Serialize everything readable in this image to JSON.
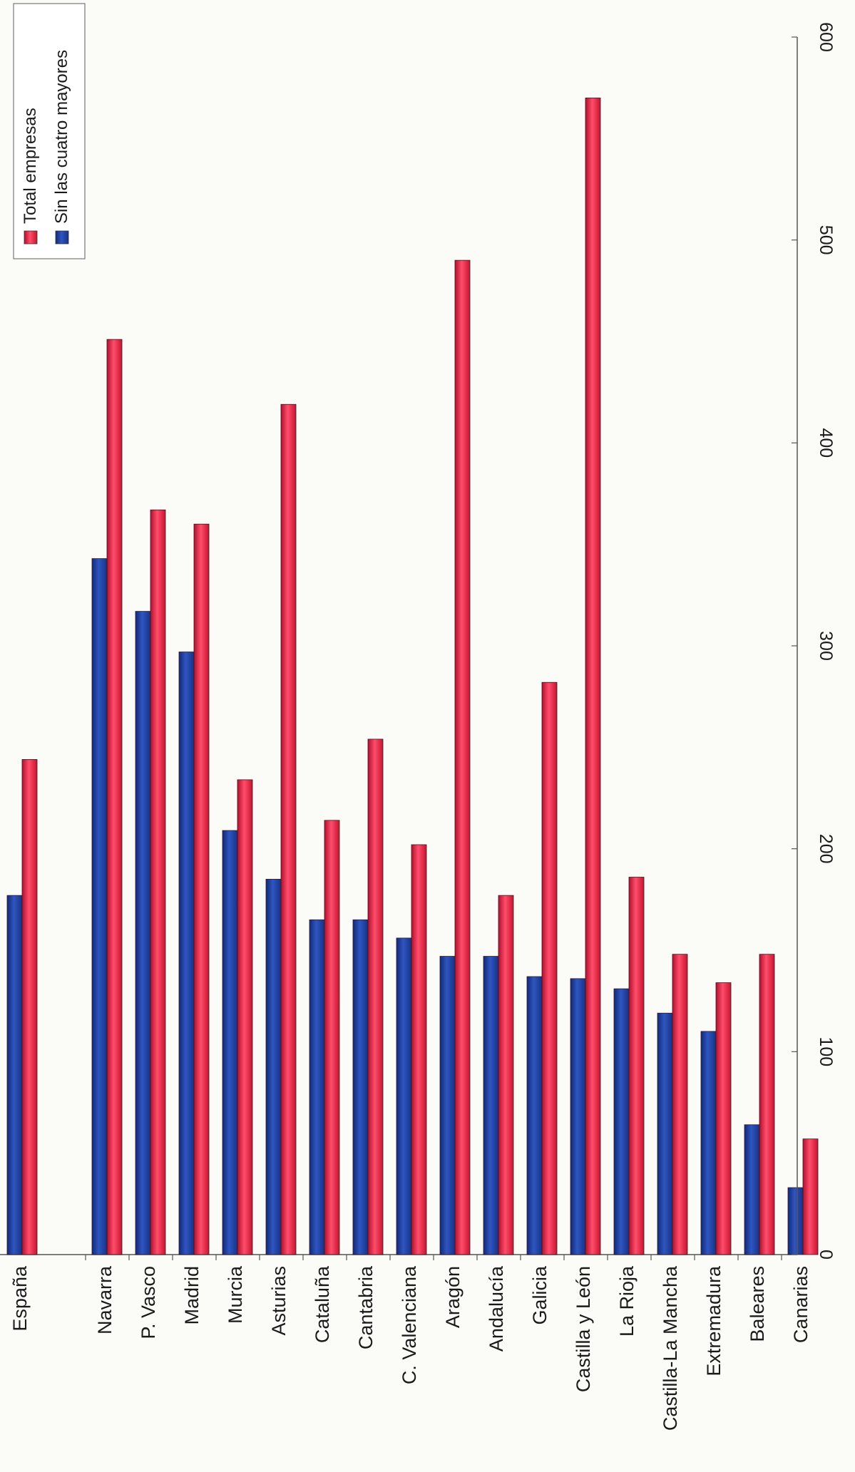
{
  "chart_data": {
    "type": "bar",
    "orientation": "rotated-90-clockwise",
    "categories": [
      "España",
      "Navarra",
      "P. Vasco",
      "Madrid",
      "Murcia",
      "Asturias",
      "Cataluña",
      "Cantabria",
      "C. Valenciana",
      "Aragón",
      "Andalucía",
      "Galicia",
      "Castilla y León",
      "La Rioja",
      "Castilla-La Mancha",
      "Extremadura",
      "Baleares",
      "Canarias"
    ],
    "series": [
      {
        "name": "Sin las cuatro mayores",
        "color": "#1f3f9c",
        "values": [
          177,
          343,
          317,
          297,
          209,
          185,
          165,
          165,
          156,
          147,
          147,
          137,
          136,
          131,
          119,
          110,
          64,
          33
        ]
      },
      {
        "name": "Total empresas",
        "color": "#e8193e",
        "values": [
          244,
          451,
          367,
          360,
          234,
          419,
          214,
          254,
          202,
          490,
          177,
          282,
          570,
          186,
          148,
          134,
          148,
          57
        ]
      }
    ],
    "value_axis": {
      "ticks": [
        0,
        100,
        200,
        300,
        400,
        500,
        600
      ],
      "range": [
        0,
        600
      ]
    },
    "legend": {
      "placement": "top-left",
      "entries": [
        "Total empresas",
        "Sin las cuatro mayores"
      ]
    },
    "grid": false
  }
}
